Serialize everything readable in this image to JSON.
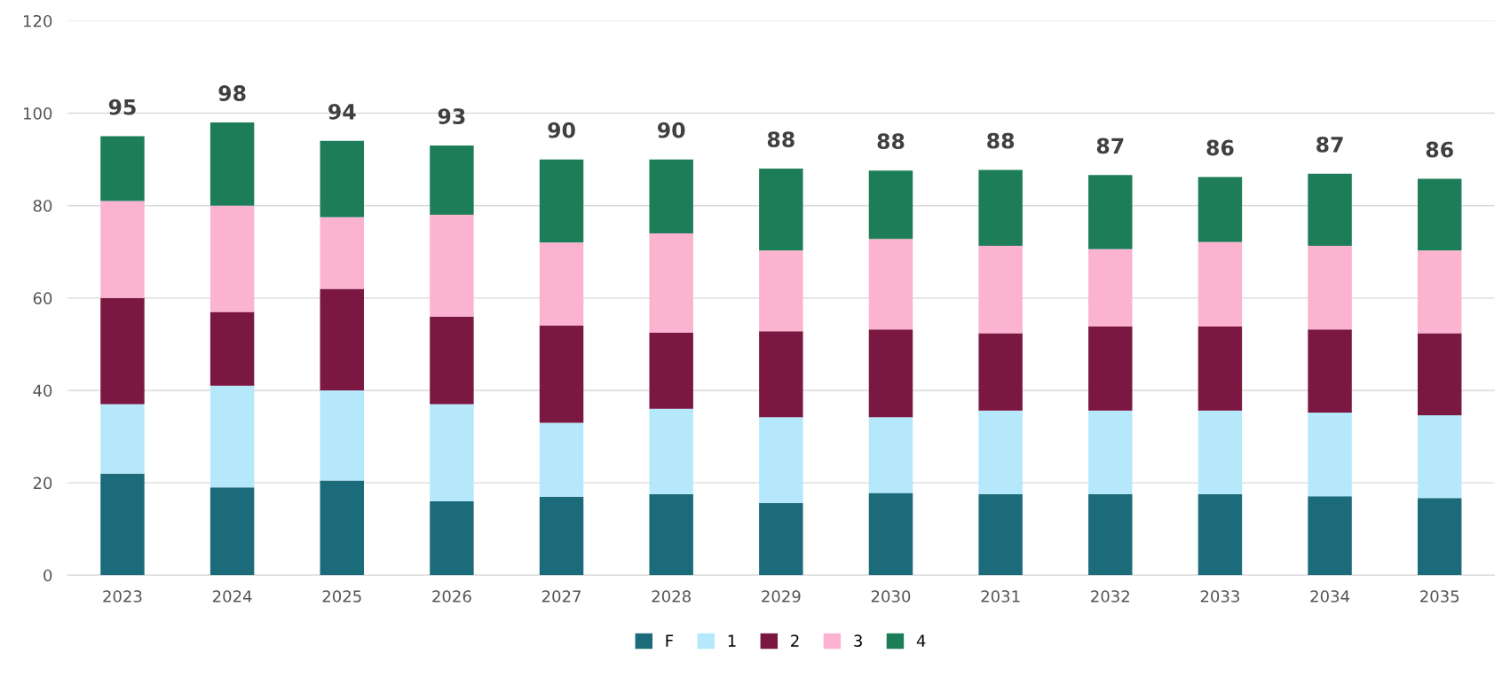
{
  "chart_data": {
    "type": "bar",
    "stacked": true,
    "categories": [
      "2023",
      "2024",
      "2025",
      "2026",
      "2027",
      "2028",
      "2029",
      "2030",
      "2031",
      "2032",
      "2033",
      "2034",
      "2035"
    ],
    "series": [
      {
        "name": "F",
        "color": "#1b6b7b",
        "values": [
          22,
          19,
          20.5,
          16,
          17,
          17.5,
          15.6,
          17.8,
          17.5,
          17.5,
          17.5,
          17.1,
          16.7
        ]
      },
      {
        "name": "1",
        "color": "#b5e8fb",
        "values": [
          15,
          22,
          19.5,
          21,
          16,
          18.5,
          18.6,
          16.4,
          18.1,
          18.1,
          18.1,
          18.1,
          17.9
        ]
      },
      {
        "name": "2",
        "color": "#7b1842",
        "values": [
          23,
          16,
          22,
          19,
          21,
          16.5,
          18.6,
          19,
          16.8,
          18.2,
          18.2,
          18,
          17.8
        ]
      },
      {
        "name": "3",
        "color": "#fbb3d0",
        "values": [
          21,
          23,
          15.5,
          22,
          18,
          21.5,
          17.5,
          19.6,
          18.9,
          16.8,
          18.3,
          18.1,
          17.9
        ]
      },
      {
        "name": "4",
        "color": "#1c7d58",
        "values": [
          14,
          18,
          16.5,
          15,
          18,
          16,
          17.7,
          14.8,
          16.4,
          16,
          14.1,
          15.6,
          15.5
        ]
      }
    ],
    "totals": [
      "95",
      "98",
      "94",
      "93",
      "90",
      "90",
      "88",
      "88",
      "88",
      "87",
      "86",
      "87",
      "86"
    ],
    "ylim": [
      0,
      120
    ],
    "yticks": [
      0,
      20,
      40,
      60,
      80,
      100,
      120
    ],
    "grid": "y",
    "legend": "bottom"
  }
}
